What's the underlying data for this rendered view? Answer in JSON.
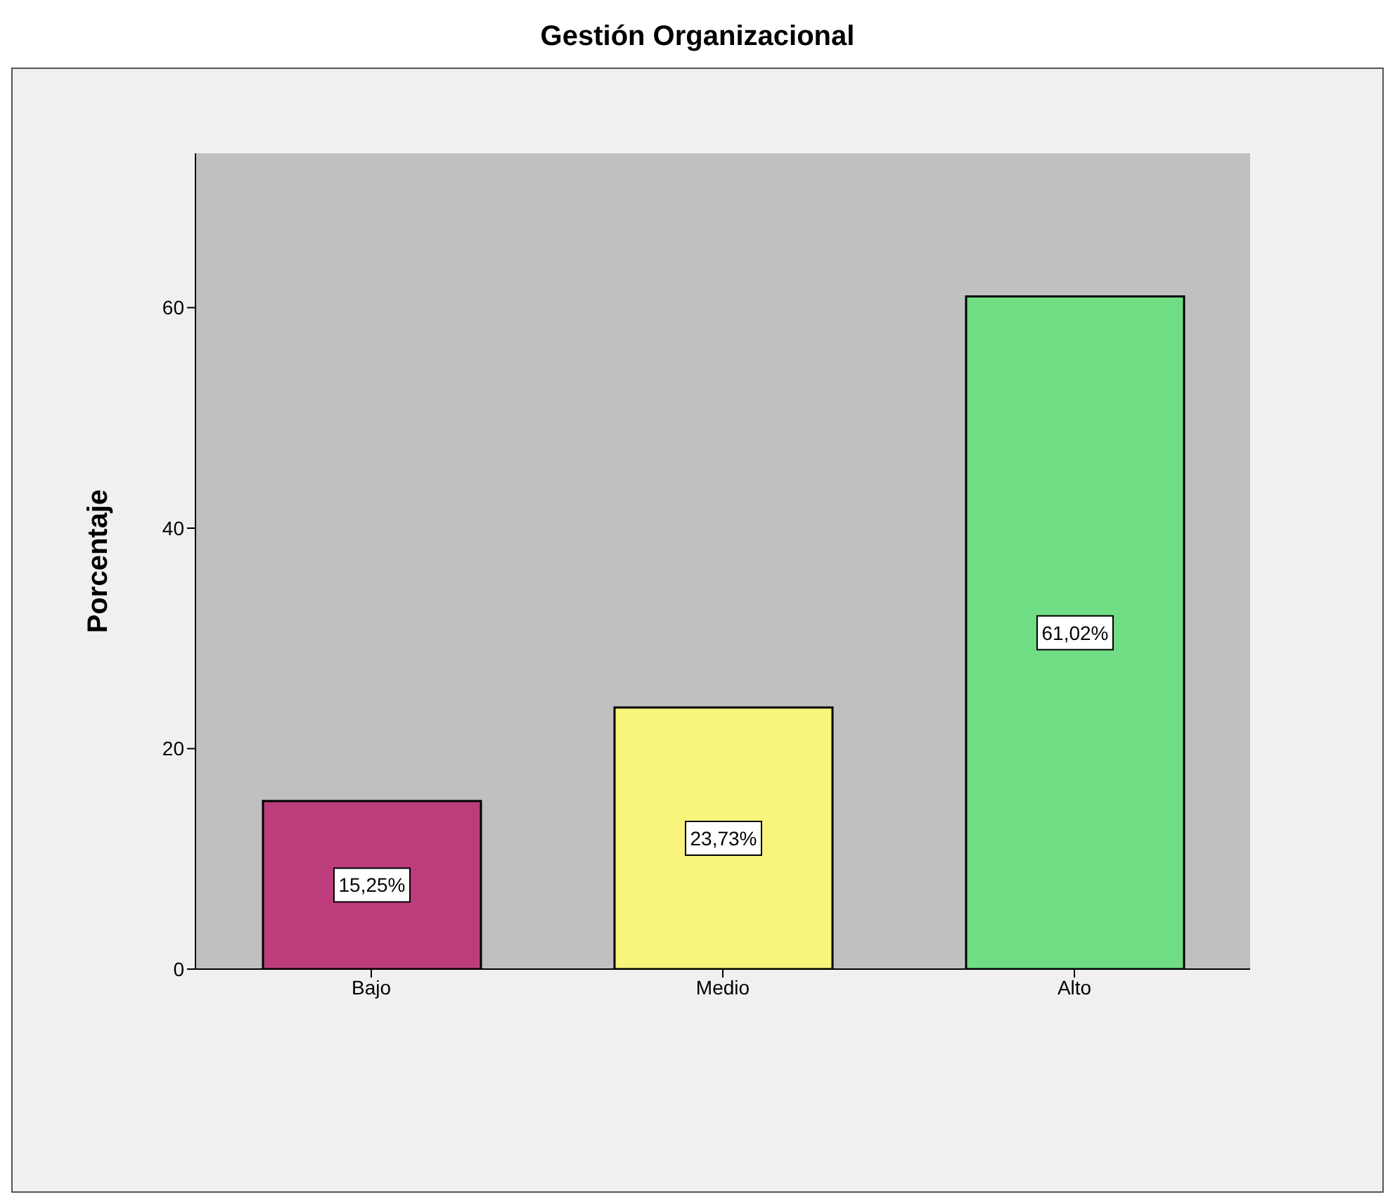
{
  "chart_data": {
    "type": "bar",
    "title": "Gestión Organizacional",
    "ylabel": "Porcentaje",
    "categories": [
      "Bajo",
      "Medio",
      "Alto"
    ],
    "values": [
      15.25,
      23.73,
      61.02
    ],
    "colors": [
      "#bc3c7c",
      "#f8f47c",
      "#70dc84"
    ],
    "value_labels": [
      "15,25%",
      "23,73%",
      "61,02%"
    ],
    "ylim": [
      0,
      74
    ],
    "yticks": [
      0,
      20,
      40,
      60
    ],
    "grid": false
  }
}
